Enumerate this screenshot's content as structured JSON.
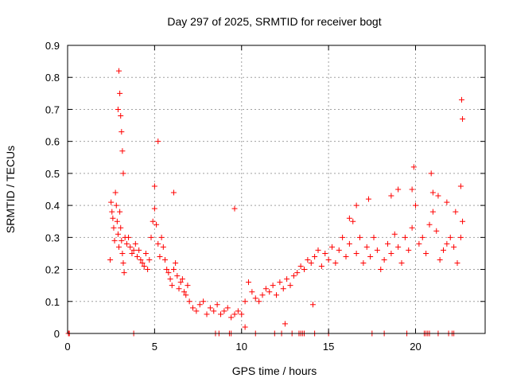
{
  "chart_data": {
    "type": "scatter",
    "title": "Day 297 of 2025, SRMTID for receiver bogt",
    "xlabel": "GPS time / hours",
    "ylabel": "SRMTID / TECUs",
    "xlim": [
      0,
      24
    ],
    "ylim": [
      0,
      0.9
    ],
    "xticks": [
      0,
      5,
      10,
      15,
      20
    ],
    "xtick_labels": [
      "0",
      "5",
      "10",
      "15",
      "20"
    ],
    "yticks": [
      0,
      0.1,
      0.2,
      0.3,
      0.4,
      0.5,
      0.6,
      0.7,
      0.8,
      0.9
    ],
    "ytick_labels": [
      "0",
      "0.1",
      "0.2",
      "0.3",
      "0.4",
      "0.5",
      "0.6",
      "0.7",
      "0.8",
      "0.9"
    ],
    "grid": true,
    "marker": "+",
    "marker_color": "#ff0000",
    "series": [
      {
        "name": "SRMTID",
        "x": [
          0.05,
          0.1,
          2.45,
          2.5,
          2.55,
          2.6,
          2.65,
          2.7,
          2.75,
          2.8,
          2.85,
          2.9,
          2.95,
          3.0,
          3.05,
          3.1,
          3.15,
          3.2,
          3.25,
          3.3,
          3.4,
          3.5,
          3.6,
          3.7,
          3.8,
          3.9,
          4.0,
          4.1,
          4.2,
          4.3,
          4.4,
          4.5,
          4.6,
          4.7,
          4.8,
          4.9,
          5.0,
          5.1,
          5.2,
          5.3,
          5.4,
          5.5,
          5.6,
          5.7,
          5.8,
          5.9,
          6.0,
          6.1,
          6.2,
          6.3,
          6.4,
          6.5,
          6.6,
          6.7,
          6.8,
          6.9,
          7.0,
          7.2,
          7.4,
          7.6,
          7.8,
          8.0,
          8.2,
          8.4,
          8.6,
          8.8,
          9.0,
          9.2,
          9.4,
          9.6,
          9.8,
          10.0,
          10.2,
          10.4,
          10.6,
          10.8,
          11.0,
          11.2,
          11.4,
          11.6,
          11.8,
          12.0,
          12.2,
          12.4,
          12.6,
          12.8,
          13.0,
          13.2,
          13.4,
          13.6,
          13.8,
          14.0,
          14.2,
          14.4,
          14.6,
          14.8,
          15.0,
          15.2,
          15.4,
          15.6,
          15.8,
          16.0,
          16.2,
          16.4,
          16.6,
          16.8,
          17.0,
          17.2,
          17.4,
          17.6,
          17.8,
          18.0,
          18.2,
          18.4,
          18.6,
          18.8,
          19.0,
          19.2,
          19.4,
          19.6,
          19.8,
          20.0,
          20.2,
          20.4,
          20.6,
          20.8,
          21.0,
          21.2,
          21.4,
          21.6,
          21.8,
          22.0,
          22.2,
          22.4,
          22.6,
          22.7,
          2.9,
          2.95,
          3.0,
          3.05,
          3.1,
          3.15,
          3.2,
          22.6,
          22.65,
          22.7,
          5.2,
          5.0,
          6.1,
          9.6,
          10.2,
          12.5,
          14.1,
          16.2,
          16.6,
          18.6,
          19.0,
          19.8,
          19.9,
          20.9,
          21.0,
          21.3,
          21.8,
          22.3,
          17.3,
          17.5,
          18.2,
          19.5,
          20.5,
          20.6,
          20.7,
          20.8,
          21.3,
          21.9,
          22.1,
          22.2,
          8.5,
          8.7,
          9.3,
          9.4,
          10.8,
          11.9,
          12.3,
          12.9,
          13.3,
          13.4,
          13.5,
          13.6,
          14.2,
          15.0,
          3.8
        ],
        "y": [
          0.0,
          0.0,
          0.23,
          0.41,
          0.38,
          0.36,
          0.33,
          0.29,
          0.44,
          0.4,
          0.35,
          0.31,
          0.27,
          0.38,
          0.33,
          0.29,
          0.25,
          0.22,
          0.19,
          0.3,
          0.28,
          0.3,
          0.27,
          0.25,
          0.26,
          0.28,
          0.24,
          0.26,
          0.23,
          0.22,
          0.21,
          0.25,
          0.2,
          0.23,
          0.3,
          0.35,
          0.39,
          0.34,
          0.28,
          0.24,
          0.3,
          0.27,
          0.23,
          0.2,
          0.19,
          0.17,
          0.15,
          0.2,
          0.22,
          0.18,
          0.14,
          0.16,
          0.17,
          0.13,
          0.12,
          0.15,
          0.1,
          0.08,
          0.07,
          0.09,
          0.1,
          0.06,
          0.08,
          0.07,
          0.09,
          0.06,
          0.07,
          0.08,
          0.05,
          0.06,
          0.07,
          0.06,
          0.1,
          0.16,
          0.13,
          0.11,
          0.1,
          0.12,
          0.14,
          0.13,
          0.15,
          0.12,
          0.16,
          0.14,
          0.17,
          0.15,
          0.18,
          0.19,
          0.21,
          0.2,
          0.23,
          0.22,
          0.24,
          0.26,
          0.21,
          0.25,
          0.23,
          0.27,
          0.22,
          0.26,
          0.3,
          0.24,
          0.28,
          0.35,
          0.25,
          0.3,
          0.22,
          0.27,
          0.24,
          0.3,
          0.26,
          0.2,
          0.23,
          0.28,
          0.25,
          0.31,
          0.27,
          0.22,
          0.3,
          0.26,
          0.33,
          0.4,
          0.28,
          0.3,
          0.25,
          0.34,
          0.38,
          0.32,
          0.23,
          0.26,
          0.28,
          0.3,
          0.27,
          0.22,
          0.3,
          0.35,
          0.7,
          0.82,
          0.75,
          0.68,
          0.63,
          0.57,
          0.5,
          0.46,
          0.73,
          0.67,
          0.6,
          0.46,
          0.44,
          0.39,
          0.02,
          0.03,
          0.09,
          0.36,
          0.4,
          0.43,
          0.45,
          0.45,
          0.52,
          0.5,
          0.44,
          0.43,
          0.41,
          0.38,
          0.42,
          0.0,
          0.0,
          0.0,
          0.0,
          0.0,
          0.0,
          0.0,
          0.0,
          0.0,
          0.0,
          0.0,
          0.0,
          0.0,
          0.0,
          0.0,
          0.0,
          0.0,
          0.0,
          0.0,
          0.0,
          0.0,
          0.0,
          0.0,
          0.0,
          0.0,
          0.0
        ]
      }
    ]
  }
}
